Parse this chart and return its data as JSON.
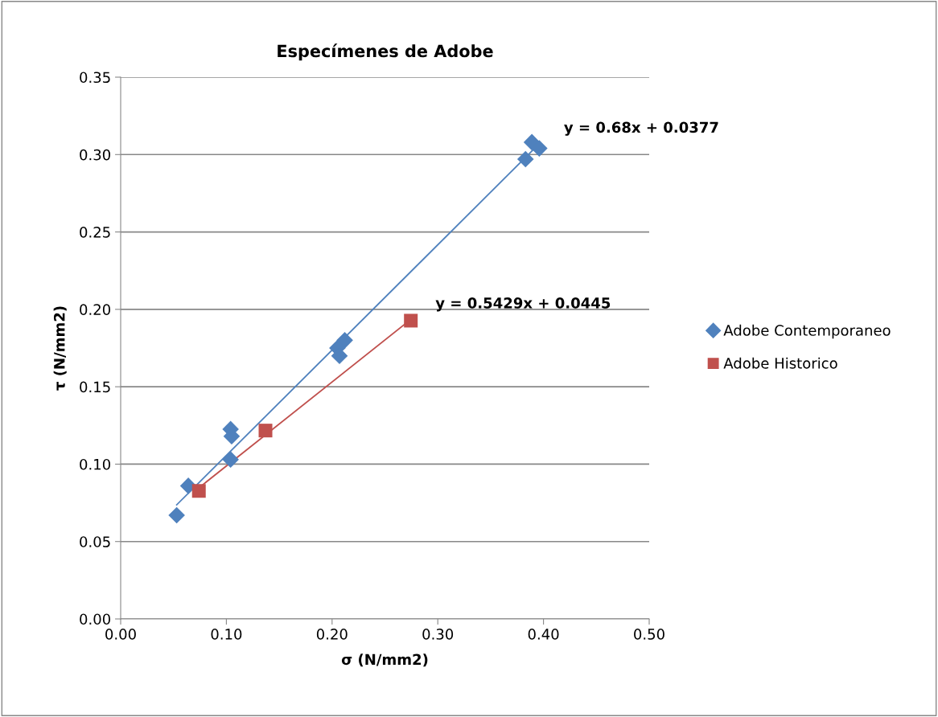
{
  "chart_data": {
    "type": "scatter",
    "title": "Especímenes de Adobe",
    "xlabel": "σ (N/mm2)",
    "ylabel": "τ (N/mm2)",
    "xlim": [
      0,
      0.5
    ],
    "xticks": [
      {
        "value": 0,
        "label": "0.00"
      },
      {
        "value": 0.1,
        "label": "0.10"
      },
      {
        "value": 0.2,
        "label": "0.20"
      },
      {
        "value": 0.3,
        "label": "0.30"
      },
      {
        "value": 0.4,
        "label": "0.40"
      },
      {
        "value": 0.5,
        "label": "0.50"
      }
    ],
    "ylim": [
      0,
      0.35
    ],
    "yticks": [
      {
        "value": 0,
        "label": "0.00"
      },
      {
        "value": 0.05,
        "label": "0.05"
      },
      {
        "value": 0.1,
        "label": "0.10"
      },
      {
        "value": 0.15,
        "label": "0.15"
      },
      {
        "value": 0.2,
        "label": "0.20"
      },
      {
        "value": 0.25,
        "label": "0.25"
      },
      {
        "value": 0.3,
        "label": "0.30"
      },
      {
        "value": 0.35,
        "label": "0.35"
      }
    ],
    "grid": "y",
    "legend": "right",
    "series": [
      {
        "name": "Adobe Contemporaneo",
        "marker": "diamond",
        "color": "#4f81bd",
        "x": [
          0.053,
          0.064,
          0.104,
          0.105,
          0.104,
          0.212,
          0.205,
          0.207,
          0.389,
          0.396,
          0.383
        ],
        "values": [
          0.067,
          0.086,
          0.1226,
          0.118,
          0.103,
          0.18,
          0.175,
          0.17,
          0.308,
          0.304,
          0.297
        ]
      },
      {
        "name": "Adobe Historico",
        "marker": "square",
        "color": "#c0504d",
        "x": [
          0.074,
          0.137,
          0.2745
        ],
        "values": [
          0.0827,
          0.1217,
          0.1927
        ]
      },
      {
        "type": "line",
        "color": "#4f81bd",
        "x": [
          0.053,
          0.396
        ],
        "values": [
          0.0737,
          0.307
        ]
      },
      {
        "type": "line",
        "color": "#c0504d",
        "x": [
          0.074,
          0.2745
        ],
        "values": [
          0.0847,
          0.1935
        ]
      }
    ],
    "annotations": [
      {
        "text": "y = 0.68x + 0.0377",
        "x": 0.396,
        "y": 0.307
      },
      {
        "text": "y = 0.5429x + 0.0445",
        "x": 0.2745,
        "y": 0.1935
      }
    ]
  }
}
